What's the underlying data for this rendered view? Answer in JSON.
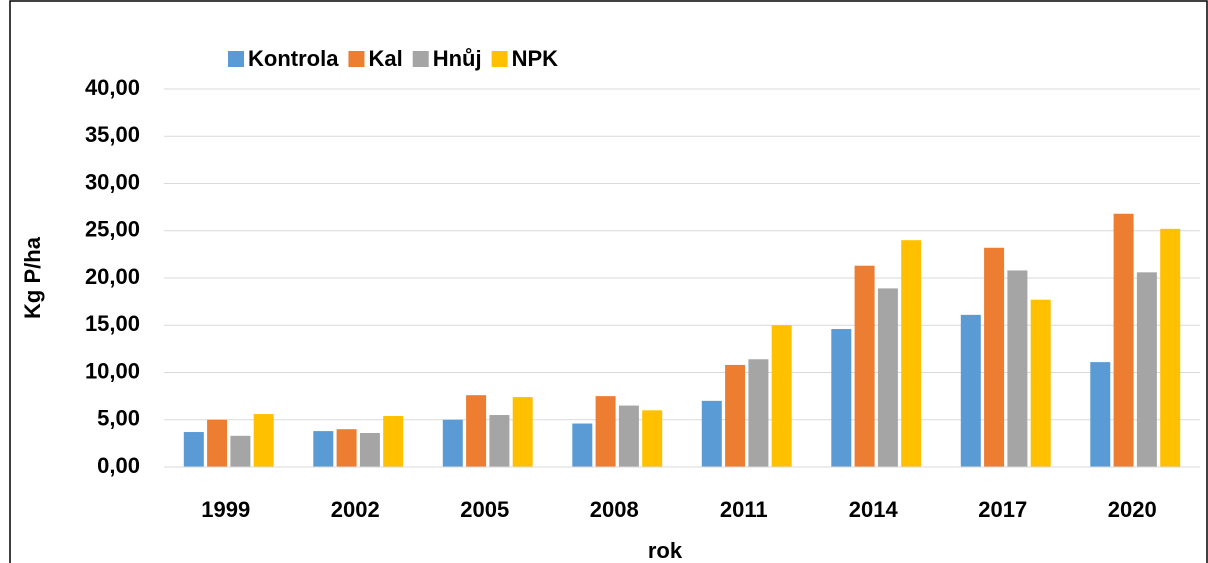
{
  "chart_data": {
    "type": "bar",
    "x_label": "rok",
    "y_label": "Kg P/ha",
    "categories": [
      "1999",
      "2002",
      "2005",
      "2008",
      "2011",
      "2014",
      "2017",
      "2020"
    ],
    "series": [
      {
        "name": "Kontrola",
        "color": "#5b9bd5",
        "values": [
          3.7,
          3.8,
          5.0,
          4.6,
          7.0,
          14.6,
          16.1,
          11.1
        ]
      },
      {
        "name": "Kal",
        "color": "#ed7d31",
        "values": [
          5.0,
          4.0,
          7.6,
          7.5,
          10.8,
          21.3,
          23.2,
          26.8
        ]
      },
      {
        "name": "Hnůj",
        "color": "#a5a5a5",
        "values": [
          3.3,
          3.6,
          5.5,
          6.5,
          11.4,
          18.9,
          20.8,
          20.6
        ]
      },
      {
        "name": "NPK",
        "color": "#ffc000",
        "values": [
          5.6,
          5.4,
          7.4,
          6.0,
          15.0,
          24.0,
          17.7,
          25.2
        ]
      }
    ],
    "ylim": [
      0,
      40
    ],
    "yticks": [
      {
        "value": 0,
        "label": "0,00"
      },
      {
        "value": 5,
        "label": "5,00"
      },
      {
        "value": 10,
        "label": "10,00"
      },
      {
        "value": 15,
        "label": "15,00"
      },
      {
        "value": 20,
        "label": "20,00"
      },
      {
        "value": 25,
        "label": "25,00"
      },
      {
        "value": 30,
        "label": "30,00"
      },
      {
        "value": 35,
        "label": "35,00"
      },
      {
        "value": 40,
        "label": "40,00"
      }
    ],
    "grid": true,
    "legend": "top"
  }
}
